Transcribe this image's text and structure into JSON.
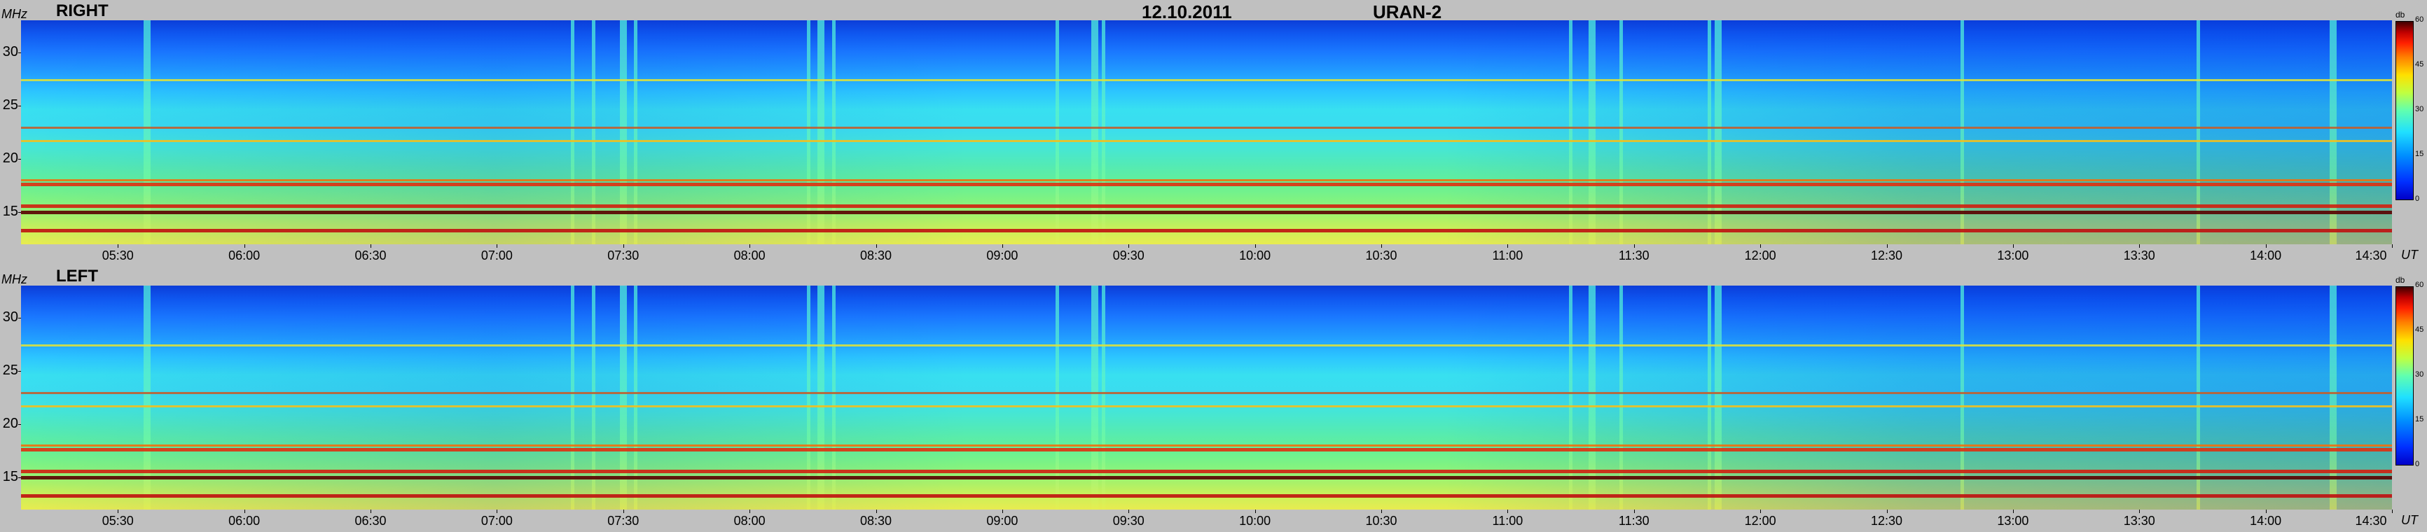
{
  "header": {
    "date": "12.10.2011",
    "instrument": "URAN-2"
  },
  "colors": {
    "background": "#c0c0c0",
    "low": "#0000c8",
    "mid": "#40ffc0",
    "high": "#c00000"
  },
  "chart_data": [
    {
      "type": "heatmap",
      "title": "RIGHT",
      "ylabel": "MHz",
      "xlabel": "UT",
      "ylim": [
        12,
        33
      ],
      "yticks": [
        "15",
        "20",
        "25",
        "30"
      ],
      "xticks": [
        "05:30",
        "06:00",
        "06:30",
        "07:00",
        "07:30",
        "08:00",
        "08:30",
        "09:00",
        "09:30",
        "10:00",
        "10:30",
        "11:00",
        "11:30",
        "12:00",
        "12:30",
        "13:00",
        "13:30",
        "14:00",
        "14:30"
      ],
      "colorbar": {
        "label": "db",
        "range": [
          0,
          60
        ],
        "ticks": [
          "0",
          "15",
          "30",
          "45",
          "60"
        ]
      }
    },
    {
      "type": "heatmap",
      "title": "LEFT",
      "ylabel": "MHz",
      "xlabel": "UT",
      "ylim": [
        12,
        33
      ],
      "yticks": [
        "15",
        "20",
        "25",
        "30"
      ],
      "xticks": [
        "05:30",
        "06:00",
        "06:30",
        "07:00",
        "07:30",
        "08:00",
        "08:30",
        "09:00",
        "09:30",
        "10:00",
        "10:30",
        "11:00",
        "11:30",
        "12:00",
        "12:30",
        "13:00",
        "13:30",
        "14:00",
        "14:30"
      ],
      "colorbar": {
        "label": "db",
        "range": [
          0,
          60
        ],
        "ticks": [
          "0",
          "15",
          "30",
          "45",
          "60"
        ]
      }
    }
  ],
  "time_axis": {
    "start": "05:07",
    "end": "14:30"
  },
  "bands": [
    {
      "freq_mhz": 13.3,
      "level_db": 55,
      "color": "#c01010"
    },
    {
      "freq_mhz": 15.0,
      "level_db": 60,
      "color": "#5a0000"
    },
    {
      "freq_mhz": 15.6,
      "level_db": 55,
      "color": "#d02010"
    },
    {
      "freq_mhz": 17.6,
      "level_db": 50,
      "color": "#e03010"
    },
    {
      "freq_mhz": 18.0,
      "level_db": 45,
      "color": "#f07010"
    },
    {
      "freq_mhz": 21.7,
      "level_db": 35,
      "color": "#f0c020"
    },
    {
      "freq_mhz": 22.9,
      "level_db": 40,
      "color": "#c06030"
    },
    {
      "freq_mhz": 27.4,
      "level_db": 32,
      "color": "#d8e040"
    }
  ],
  "bursts_ut": [
    "05:37",
    "07:18",
    "07:23",
    "07:30",
    "07:33",
    "08:14",
    "08:17",
    "08:20",
    "09:13",
    "09:22",
    "09:24",
    "11:15",
    "11:20",
    "11:27",
    "11:48",
    "11:50",
    "12:48",
    "13:44",
    "14:16"
  ]
}
